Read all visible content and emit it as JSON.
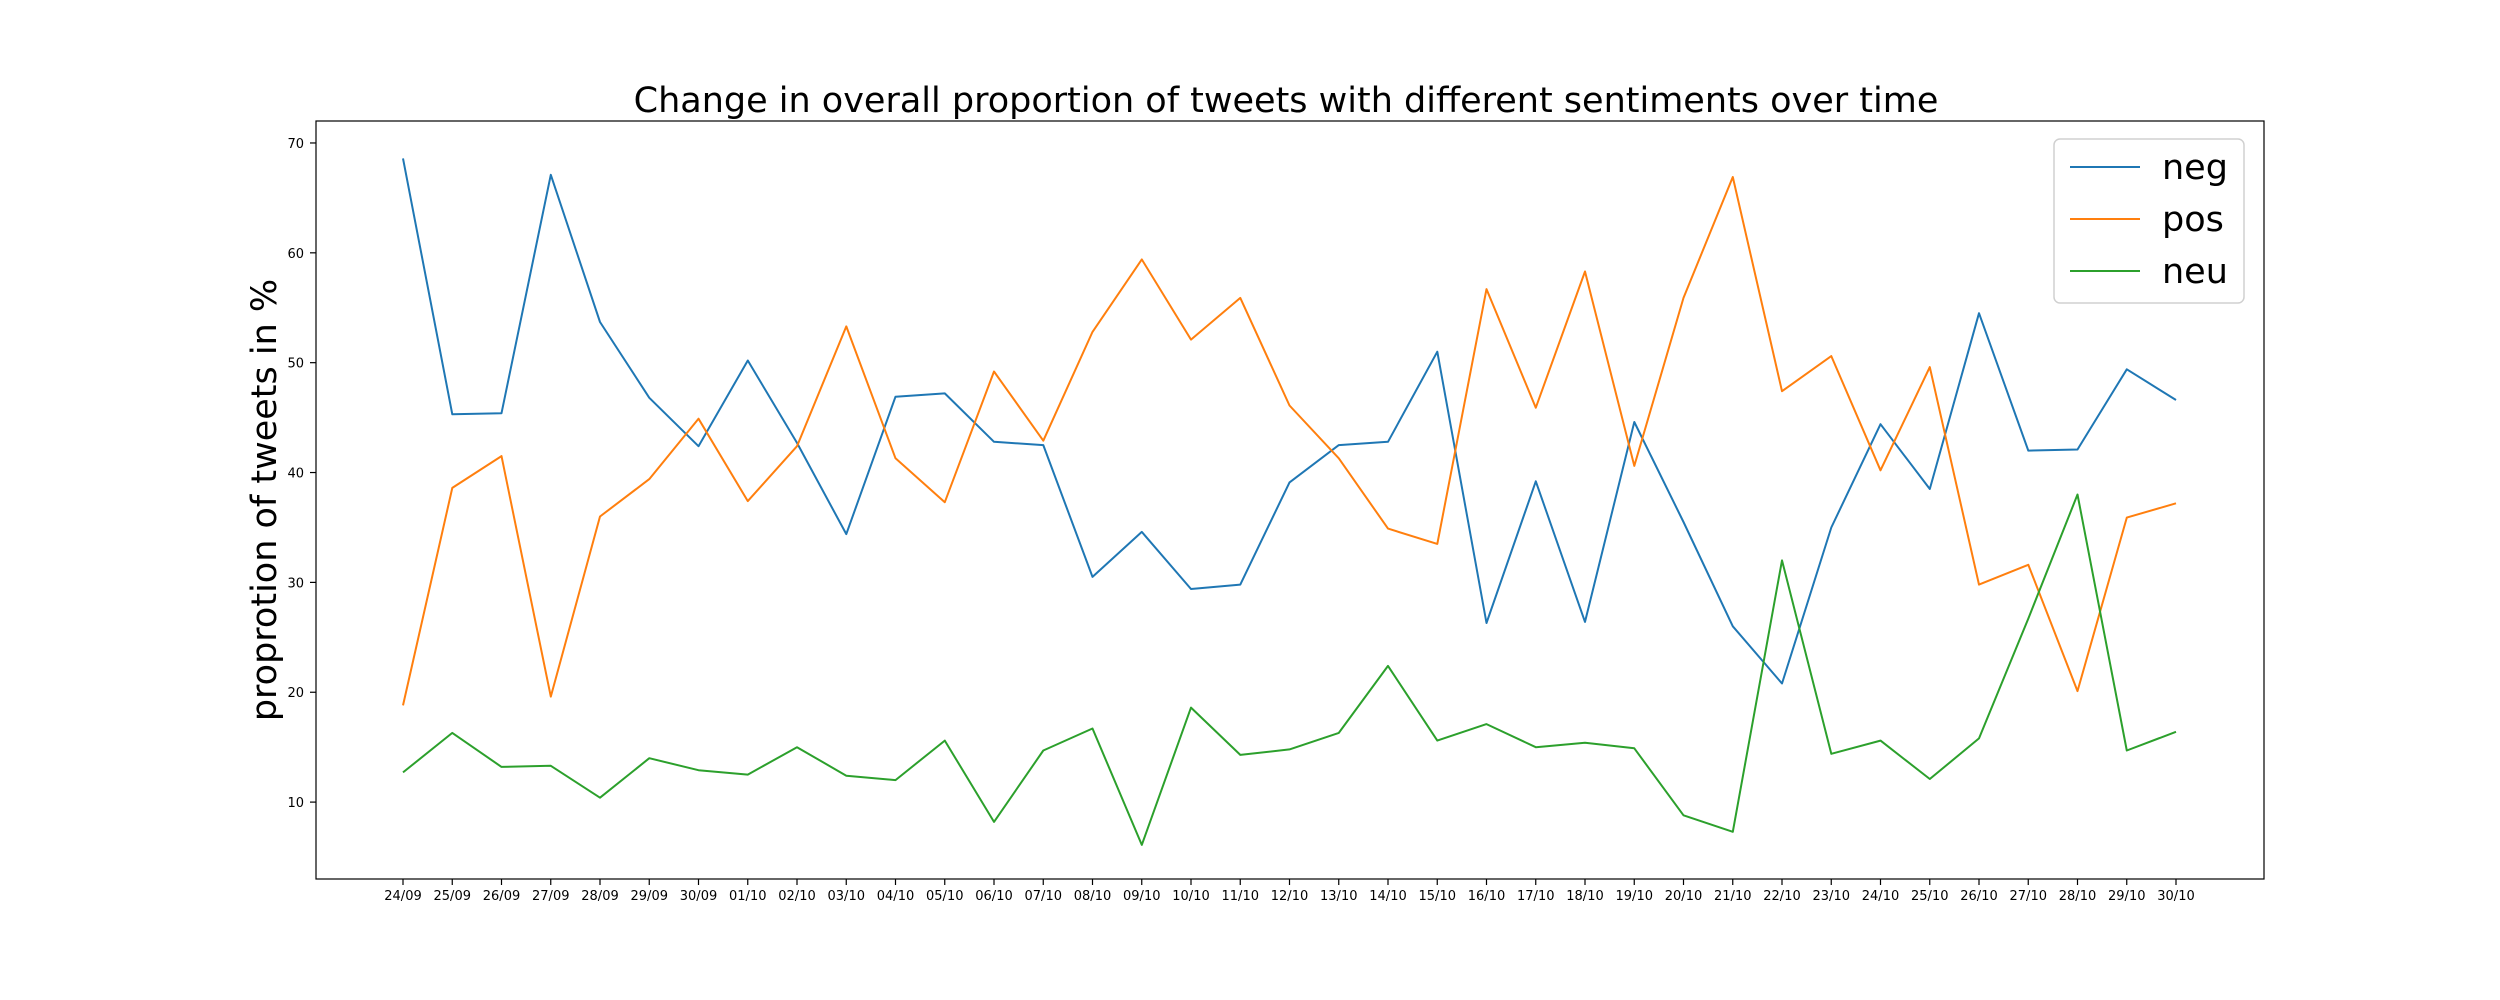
{
  "chart_data": {
    "type": "line",
    "title": "Change in overall proportion of tweets with different sentiments over time",
    "xlabel": "",
    "ylabel": "proprotion of tweets in %",
    "ylim": [
      3,
      72
    ],
    "yticks": [
      10,
      20,
      30,
      40,
      50,
      60,
      70
    ],
    "grid": false,
    "legend_position": "top-right",
    "categories": [
      "24/09",
      "25/09",
      "26/09",
      "27/09",
      "28/09",
      "29/09",
      "30/09",
      "01/10",
      "02/10",
      "03/10",
      "04/10",
      "05/10",
      "06/10",
      "07/10",
      "08/10",
      "09/10",
      "10/10",
      "11/10",
      "12/10",
      "13/10",
      "14/10",
      "15/10",
      "16/10",
      "17/10",
      "18/10",
      "19/10",
      "20/10",
      "21/10",
      "22/10",
      "23/10",
      "24/10",
      "25/10",
      "26/10",
      "27/10",
      "28/10",
      "29/10",
      "30/10"
    ],
    "series": [
      {
        "name": "neg",
        "color": "#1f77b4",
        "values": [
          68.6,
          45.3,
          45.4,
          67.1,
          53.7,
          46.8,
          42.4,
          50.2,
          42.7,
          34.4,
          46.9,
          47.2,
          42.8,
          42.5,
          30.5,
          34.6,
          29.4,
          29.8,
          39.1,
          42.5,
          42.8,
          51.0,
          26.3,
          39.2,
          26.4,
          44.6,
          35.5,
          26.0,
          20.8,
          35.0,
          44.4,
          38.5,
          54.5,
          42.0,
          42.1,
          49.4,
          46.6
        ]
      },
      {
        "name": "pos",
        "color": "#ff7f0e",
        "values": [
          18.8,
          38.6,
          41.5,
          19.6,
          36.0,
          39.4,
          44.9,
          37.4,
          42.4,
          53.3,
          41.3,
          37.3,
          49.2,
          42.9,
          52.8,
          59.4,
          52.1,
          55.9,
          46.1,
          41.3,
          34.9,
          33.5,
          56.7,
          45.9,
          58.3,
          40.6,
          55.9,
          66.9,
          47.4,
          50.6,
          40.2,
          49.6,
          29.8,
          31.6,
          20.1,
          35.9,
          37.2
        ]
      },
      {
        "name": "neu",
        "color": "#2ca02c",
        "values": [
          12.7,
          16.3,
          13.2,
          13.3,
          10.4,
          14.0,
          12.9,
          12.5,
          15.0,
          12.4,
          12.0,
          15.6,
          8.2,
          14.7,
          16.7,
          6.1,
          18.6,
          14.3,
          14.8,
          16.3,
          22.4,
          15.6,
          17.1,
          15.0,
          15.4,
          14.9,
          8.8,
          7.3,
          32.0,
          14.4,
          15.6,
          12.1,
          15.8,
          26.7,
          38.0,
          14.7,
          16.4
        ]
      }
    ]
  }
}
